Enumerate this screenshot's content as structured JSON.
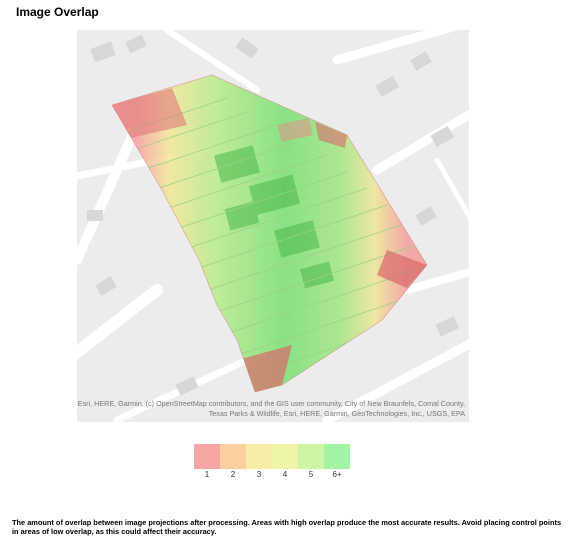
{
  "title": "Image Overlap",
  "map": {
    "attribution": "Esri, HERE, Garmin, (c) OpenStreetMap contributors, and the GIS user community, City of New Braunfels, Comal County, Texas Parks & Wildlife, Esri, HERE, Garmin, GeoTechnologies, Inc., USGS, EPA"
  },
  "legend": {
    "items": [
      {
        "label": "1",
        "color": "#f8a5a5"
      },
      {
        "label": "2",
        "color": "#fbcf9f"
      },
      {
        "label": "3",
        "color": "#f7eda6"
      },
      {
        "label": "4",
        "color": "#eef5a6"
      },
      {
        "label": "5",
        "color": "#cff4a6"
      },
      {
        "label": "6+",
        "color": "#a4f2a3"
      }
    ]
  },
  "caption": "The amount of overlap between image projections after processing. Areas with high overlap produce the most accurate results. Avoid placing control points in areas of low overlap, as this could affect their accuracy."
}
